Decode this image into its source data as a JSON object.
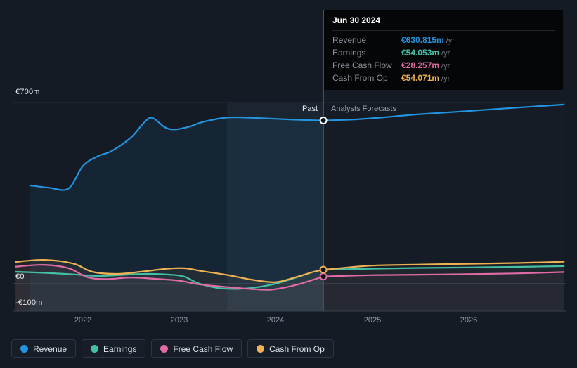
{
  "colors": {
    "background": "#151b24",
    "revenue": "#2394df",
    "earnings": "#44c0a7",
    "free_cash_flow": "#e06ba6",
    "cash_from_op": "#ecb254"
  },
  "axis": {
    "y_top": "€700m",
    "y_zero": "€0",
    "y_bottom": "-€100m",
    "x_ticks": [
      "2022",
      "2023",
      "2024",
      "2025",
      "2026"
    ]
  },
  "phases": {
    "past": "Past",
    "forecast": "Analysts Forecasts"
  },
  "tooltip": {
    "title": "Jun 30 2024",
    "rows": [
      {
        "label": "Revenue",
        "value": "€630.815m",
        "suffix": "/yr",
        "color": "#2394df"
      },
      {
        "label": "Earnings",
        "value": "€54.053m",
        "suffix": "/yr",
        "color": "#44c0a7"
      },
      {
        "label": "Free Cash Flow",
        "value": "€28.257m",
        "suffix": "/yr",
        "color": "#e06ba6"
      },
      {
        "label": "Cash From Op",
        "value": "€54.071m",
        "suffix": "/yr",
        "color": "#ecb254"
      }
    ]
  },
  "legend": {
    "items": [
      {
        "label": "Revenue",
        "color": "#2394df"
      },
      {
        "label": "Earnings",
        "color": "#44c0a7"
      },
      {
        "label": "Free Cash Flow",
        "color": "#e06ba6"
      },
      {
        "label": "Cash From Op",
        "color": "#ecb254"
      }
    ]
  },
  "chart_data": {
    "type": "line",
    "unit": "€m per year",
    "xlim": [
      2021.27,
      2027.02
    ],
    "ylim": [
      -100,
      700
    ],
    "x_tick_values": [
      2022,
      2023,
      2024,
      2025,
      2026
    ],
    "y_gridlines": [
      700,
      0
    ],
    "divider_x": 2024.5,
    "divider_date": "Jun 30 2024",
    "highlight_band": [
      2023.5,
      2024.5
    ],
    "legend_position": "bottom-left",
    "annotations": {
      "past": "Past",
      "forecast": "Analysts Forecasts"
    },
    "series": [
      {
        "name": "Revenue",
        "color": "#2394df",
        "x": [
          2021.45,
          2021.65,
          2021.85,
          2022.0,
          2022.15,
          2022.3,
          2022.5,
          2022.63,
          2022.72,
          2022.85,
          2022.95,
          2023.1,
          2023.25,
          2023.5,
          2023.75,
          2024.0,
          2024.25,
          2024.5,
          2024.8,
          2025.1,
          2025.5,
          2026.0,
          2026.5,
          2027.0
        ],
        "values": [
          380,
          371,
          368,
          455,
          492,
          513,
          565,
          620,
          641,
          605,
          596,
          606,
          625,
          642,
          641,
          637,
          633,
          630.815,
          634,
          642,
          655,
          667,
          680,
          692
        ]
      },
      {
        "name": "Earnings",
        "color": "#44c0a7",
        "x": [
          2021.3,
          2021.6,
          2021.9,
          2022.15,
          2022.4,
          2022.65,
          2022.9,
          2023.05,
          2023.2,
          2023.4,
          2023.6,
          2023.8,
          2024.0,
          2024.2,
          2024.4,
          2024.5,
          2025.0,
          2025.5,
          2026.0,
          2026.5,
          2027.0
        ],
        "values": [
          46,
          42,
          36,
          30,
          34,
          38,
          35,
          28,
          2,
          -16,
          -20,
          -14,
          0,
          22,
          46,
          54.053,
          58,
          61,
          63,
          65,
          68
        ]
      },
      {
        "name": "Free Cash Flow",
        "color": "#e06ba6",
        "x": [
          2021.3,
          2021.6,
          2021.85,
          2022.05,
          2022.25,
          2022.5,
          2022.75,
          2023.0,
          2023.2,
          2023.45,
          2023.7,
          2023.95,
          2024.2,
          2024.4,
          2024.5,
          2025.0,
          2025.5,
          2026.0,
          2026.5,
          2027.0
        ],
        "values": [
          66,
          73,
          60,
          25,
          18,
          24,
          19,
          12,
          -2,
          -11,
          -19,
          -23,
          -6,
          16,
          28.257,
          33,
          35,
          37,
          40,
          45
        ]
      },
      {
        "name": "Cash From Op",
        "color": "#ecb254",
        "x": [
          2021.3,
          2021.6,
          2021.9,
          2022.1,
          2022.35,
          2022.6,
          2022.85,
          2023.05,
          2023.25,
          2023.5,
          2023.75,
          2024.0,
          2024.2,
          2024.4,
          2024.5,
          2025.0,
          2025.5,
          2026.0,
          2026.5,
          2027.0
        ],
        "values": [
          84,
          92,
          78,
          46,
          38,
          46,
          57,
          60,
          48,
          34,
          16,
          6,
          24,
          46,
          54.071,
          70,
          74,
          77,
          80,
          85
        ]
      }
    ]
  }
}
